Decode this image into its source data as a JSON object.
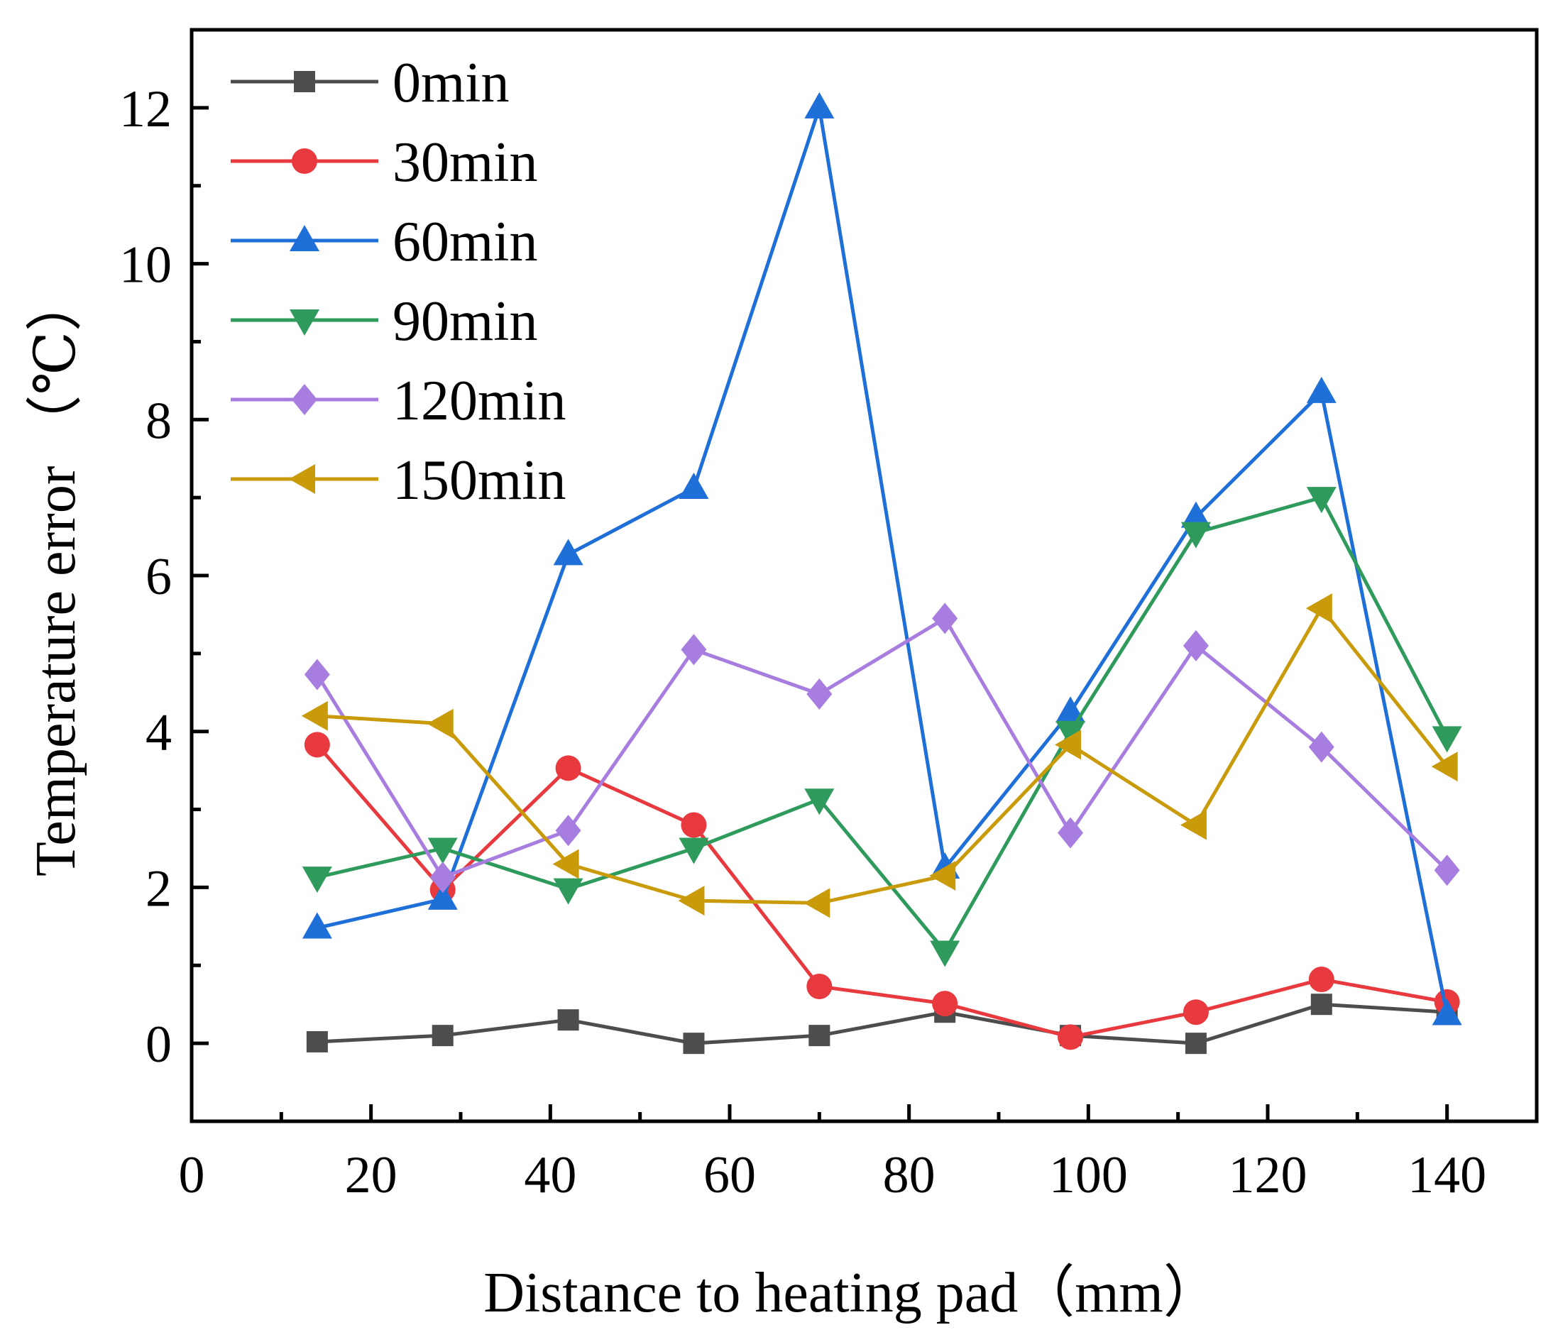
{
  "chart_data": {
    "type": "line",
    "title": "",
    "xlabel": "Distance to heating pad（mm）",
    "ylabel": "Temperature error （℃）",
    "xlim": [
      0,
      150
    ],
    "ylim": [
      -1,
      13
    ],
    "xticks": [
      0,
      20,
      40,
      60,
      80,
      100,
      120,
      140
    ],
    "yticks": [
      0,
      2,
      4,
      6,
      8,
      10,
      12
    ],
    "x": [
      14,
      28,
      42,
      56,
      70,
      84,
      98,
      112,
      126,
      140
    ],
    "legend_position": "top-left",
    "grid": false,
    "series": [
      {
        "name": "0min",
        "color": "#4d4d4d",
        "marker": "square",
        "values": [
          0.02,
          0.1,
          0.3,
          0.0,
          0.1,
          0.4,
          0.1,
          0.0,
          0.5,
          0.4
        ]
      },
      {
        "name": "30min",
        "color": "#e8393f",
        "marker": "circle",
        "values": [
          3.83,
          1.97,
          3.53,
          2.8,
          0.73,
          0.51,
          0.08,
          0.4,
          0.82,
          0.53
        ]
      },
      {
        "name": "60min",
        "color": "#1f6fd8",
        "marker": "triangle-up",
        "values": [
          1.48,
          1.85,
          6.27,
          7.12,
          12.0,
          2.25,
          4.25,
          6.75,
          8.35,
          0.37
        ]
      },
      {
        "name": "90min",
        "color": "#2e9a5c",
        "marker": "triangle-down",
        "values": [
          2.13,
          2.5,
          1.98,
          2.5,
          3.13,
          1.18,
          4.0,
          6.55,
          7.0,
          3.93
        ]
      },
      {
        "name": "120min",
        "color": "#a87de0",
        "marker": "diamond",
        "values": [
          4.73,
          2.13,
          2.73,
          5.05,
          4.48,
          5.45,
          2.7,
          5.1,
          3.8,
          2.22
        ]
      },
      {
        "name": "150min",
        "color": "#c99a0a",
        "marker": "triangle-left",
        "values": [
          4.2,
          4.1,
          2.3,
          1.83,
          1.8,
          2.15,
          3.83,
          2.8,
          5.58,
          3.55
        ]
      }
    ]
  }
}
